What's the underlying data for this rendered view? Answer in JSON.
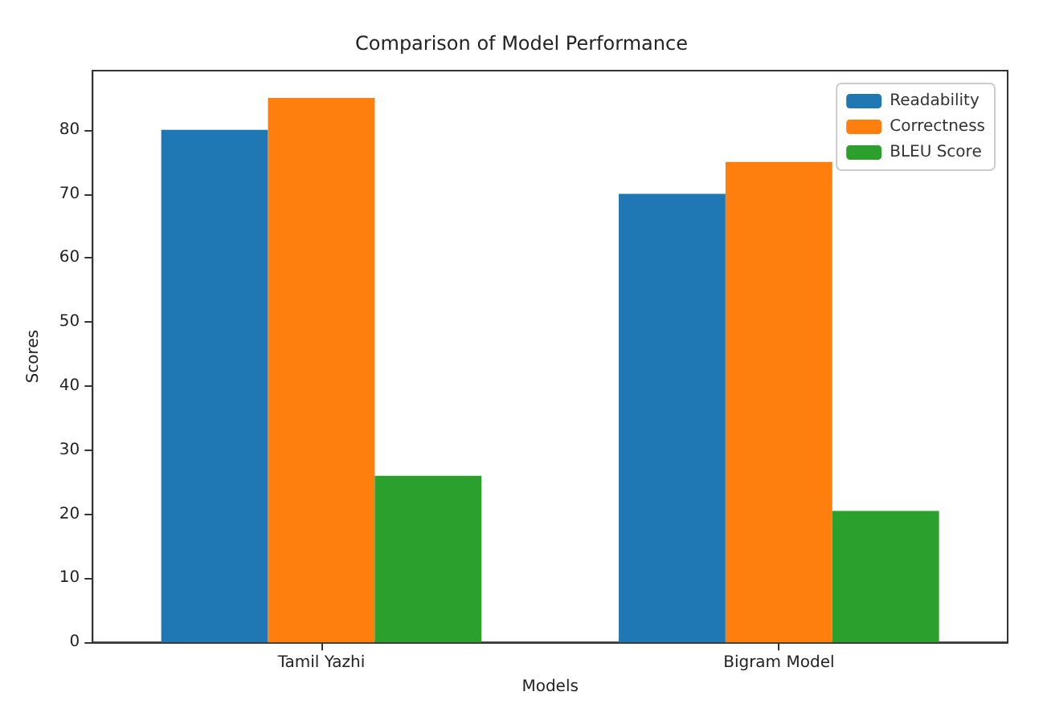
{
  "chart_data": {
    "type": "bar",
    "title": "Comparison of Model Performance",
    "xlabel": "Models",
    "ylabel": "Scores",
    "categories": [
      "Tamil Yazhi",
      "Bigram Model"
    ],
    "series": [
      {
        "name": "Readability",
        "color": "#1f77b4",
        "values": [
          80,
          70
        ]
      },
      {
        "name": "Correctness",
        "color": "#ff7f0e",
        "values": [
          85,
          75
        ]
      },
      {
        "name": "BLEU Score",
        "color": "#2ca02c",
        "values": [
          26,
          20.5
        ]
      }
    ],
    "ylim": [
      0,
      89.25
    ],
    "yticks": [
      0,
      10,
      20,
      30,
      40,
      50,
      60,
      70,
      80
    ],
    "grid": false,
    "legend": "top right"
  }
}
